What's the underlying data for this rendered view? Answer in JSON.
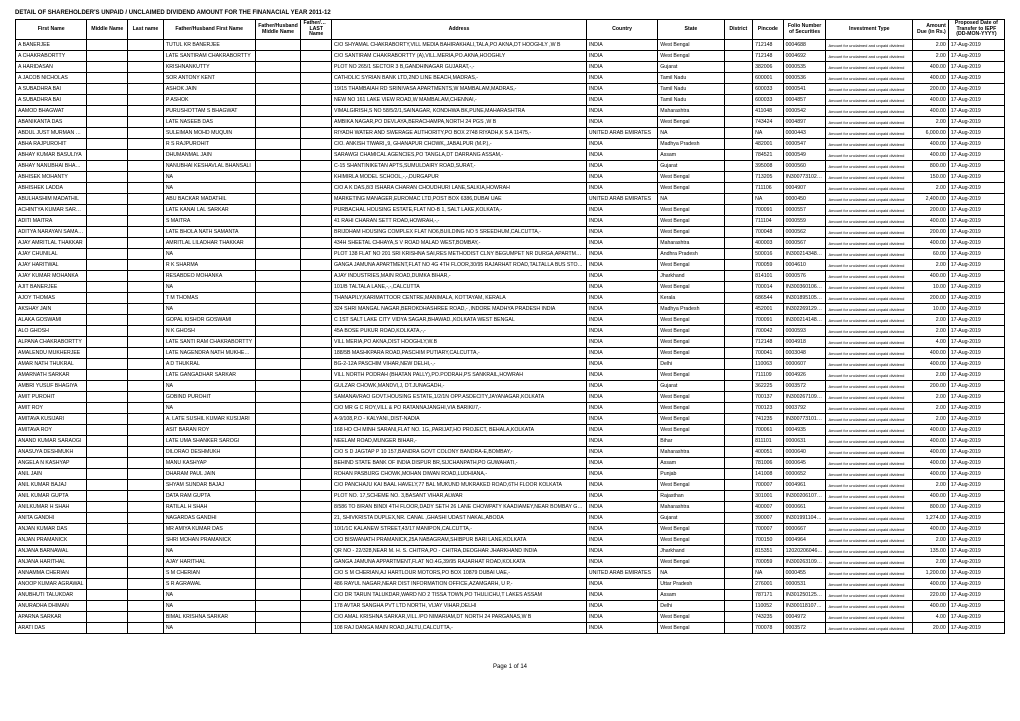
{
  "title": "DETAIL OF SHAREHOLDER'S UNPAID / UNCLAIMED DIVIDEND AMOUNT FOR THE FINANACIAL YEAR 2011-12",
  "footer": "Page 1 of 14",
  "headers": {
    "first_name": "First Name",
    "middle_name": "Middle Name",
    "last_name": "Last name",
    "father_name": "Father/Husband First Name",
    "father_middle": "Father/Husband Middle Name",
    "father_last": "Father/Husband LAST Name",
    "address": "Address",
    "country": "Country",
    "state": "State",
    "district": "District",
    "pincode": "Pincode",
    "folio": "Folio Number of Securities",
    "inv_type": "Investment Type",
    "amount": "Amount Due (in Rs.)",
    "date": "Proposed Date of Transfer to IEPF (DD-MON-YYYY)"
  },
  "inv_type_text": "Amount for unclaimed and unpaid dividend",
  "rows": [
    {
      "first": "A BANERJEE",
      "father": "TUTUL KR BANERJEE",
      "address": "C/O SHYAMAL CHAKRABORTY,VILL MEDIA BAHIRAKHALI,TALA,PO AKNA,DT HOOGHLY ,W B",
      "country": "INDIA",
      "state": "West Bengal",
      "pin": "712148",
      "folio": "0004688",
      "amt": "2.00",
      "date": "17-Aug-2019"
    },
    {
      "first": "A CHAKRABORTTY",
      "father": "LATE SANTIRAM CHAKRABORTTY",
      "address": "C/O SANTIRAM CHAKRABORTTY (A),VILL.MERIA,PO.AKNA,HOOGHLY",
      "country": "INDIA",
      "state": "West Bengal",
      "pin": "712148",
      "folio": "0004692",
      "amt": "2.00",
      "date": "17-Aug-2019"
    },
    {
      "first": "A HARIDASAN",
      "father": "KRISHNANKUTTY",
      "address": "PLOT NO 265/1 SECTOR 3 B,GANDHINAGAR GUJARAT,-,-",
      "country": "INDIA",
      "state": "Gujarat",
      "pin": "382006",
      "folio": "0000535",
      "amt": "400.00",
      "date": "17-Aug-2019"
    },
    {
      "first": "A JACOB NICHOLAS",
      "father": "SOR ANTONY KENT",
      "address": "CATHOLIC SYRIAN BANK LTD,2ND LINE BEACH,MADRAS,-",
      "country": "INDIA",
      "state": "Tamil Nadu",
      "pin": "600001",
      "folio": "0000536",
      "amt": "400.00",
      "date": "17-Aug-2019"
    },
    {
      "first": "A SUBADHRA BAI",
      "father": "ASHOK JAIN",
      "address": "19/15 THAMBAIAH RD SRINIVASA APARTMENTS,W MAMBALAM,MADRAS,-",
      "country": "INDIA",
      "state": "Tamil Nadu",
      "pin": "600033",
      "folio": "0000541",
      "amt": "200.00",
      "date": "17-Aug-2019"
    },
    {
      "first": "A SUBADHRA BAI",
      "father": "P ASHOK",
      "address": "NEW NO 161 LAKE VIEW ROAD,W MAMBALAM,CHENNAI,-",
      "country": "INDIA",
      "state": "Tamil Nadu",
      "pin": "600033",
      "folio": "0004857",
      "amt": "400.00",
      "date": "17-Aug-2019"
    },
    {
      "first": "AAMOD BHAGWAT",
      "father": "PURUSHOTTAM S BHAGWAT",
      "address": "VIMALGIRISH,S NO 58/5/2/1,SAINAGAR, KONDHWA BK,PUNE,MAHARASHTRA",
      "country": "INDIA",
      "state": "Maharashtra",
      "pin": "411048",
      "folio": "0000542",
      "amt": "400.00",
      "date": "17-Aug-2019"
    },
    {
      "first": "ABANIKANTA DAS",
      "father": "LATE NASEEB DAS",
      "address": "AMBIKA NAGAR,PO DEVLAYA,BERACHAMPA,NORTH 24 PGS ,W B",
      "country": "INDIA",
      "state": "West Bengal",
      "pin": "743424",
      "folio": "0004897",
      "amt": "2.00",
      "date": "17-Aug-2019"
    },
    {
      "first": "ABDUL JUST MURMAN MUQUIN",
      "father": "SULEIMAN MOHD MUQUIN",
      "address": "RIYADH WATER AND SWERAGE AUTHORITY,PO BOX 2748 RIYADH,K S A 11475,-",
      "country": "UNITED ARAB EMIRATES",
      "state": "NA",
      "pin": "NA",
      "folio": "0000443",
      "amt": "6,000.00",
      "date": "17-Aug-2019"
    },
    {
      "first": "ABHA RAJPUROHIT",
      "father": "R S RAJPUROHIT",
      "address": "C/O. ANKISH TIWARI,,9, GHANAPUR CHOWK,,JABALPUR (M.P.),-",
      "country": "INDIA",
      "state": "Madhya Pradesh",
      "pin": "482001",
      "folio": "0000547",
      "amt": "400.00",
      "date": "17-Aug-2019"
    },
    {
      "first": "ABHAY KUMAR BASULIYA",
      "father": "DHUMANMAL JAIN",
      "address": "SARAWGI CHAMICAL AGENCIES,PO TANGLA,DT DARRANG ASSAM,-",
      "country": "INDIA",
      "state": "Assam",
      "pin": "784521",
      "folio": "0000549",
      "amt": "400.00",
      "date": "17-Aug-2019"
    },
    {
      "first": "ABHAY NANUBHAI BHANSALI",
      "father": "NANUBHAI KESHAVLAL BHANSALI",
      "address": "C-15 SHANTINIKETAN APTS,SUMULDAIRY ROAD,SURAT,-",
      "country": "INDIA",
      "state": "Gujarat",
      "pin": "395008",
      "folio": "0000560",
      "amt": "800.00",
      "date": "17-Aug-2019"
    },
    {
      "first": "ABHISEK MOHANTY",
      "father": "NA",
      "address": "KHIMIRLA MODEL SCHOOL,-,-,DURGAPUR",
      "country": "INDIA",
      "state": "West Bengal",
      "pin": "713205",
      "folio": "IN30077310284543",
      "amt": "150.00",
      "date": "17-Aug-2019"
    },
    {
      "first": "ABHISHEK LADDA",
      "father": "NA",
      "address": "C/O A K DAS,8/3 ISHARA CHARAN CHOUDHURI LANE,SALKIA,HOWRAH",
      "country": "INDIA",
      "state": "West Bengal",
      "pin": "711106",
      "folio": "0004907",
      "amt": "2.00",
      "date": "17-Aug-2019"
    },
    {
      "first": "ABULHASHIM MADATHIL",
      "father": "ABU BACKAR MADATHIL",
      "address": "MARKETING MANAGER,EUROMAC LTD,POST BOX 6386,DUBAI UAE",
      "country": "UNITED ARAB EMIRATES",
      "state": "NA",
      "pin": "NA",
      "folio": "0000450",
      "amt": "2,400.00",
      "date": "17-Aug-2019"
    },
    {
      "first": "ACHINTYA KUMAR SARKAR",
      "father": "LATE KANAI LAL SARKAR",
      "address": "PURBACHAL HOUSING ESTATE,FLAT NO-B 1, SALT LAKE,KOLKATA,-",
      "country": "INDIA",
      "state": "West Bengal",
      "pin": "700091",
      "folio": "0000557",
      "amt": "200.00",
      "date": "17-Aug-2019"
    },
    {
      "first": "ADITI MAITRA",
      "father": "S MAITRA",
      "address": "41 RAHI CHARAN SETT ROAD,HOWRAH,-,-",
      "country": "INDIA",
      "state": "West Bengal",
      "pin": "711104",
      "folio": "0000559",
      "amt": "400.00",
      "date": "17-Aug-2019"
    },
    {
      "first": "ADITYA NARAYAN SAMANTA",
      "father": "LATE BHOLA NATH SAMANTA",
      "address": "BRIJDHAM HOUSING COMPLEX FLAT NO6,BUILDING NO 5 SREEDHUM,CALCUTTA,-",
      "country": "INDIA",
      "state": "West Bengal",
      "pin": "700048",
      "folio": "0000562",
      "amt": "200.00",
      "date": "17-Aug-2019"
    },
    {
      "first": "AJAY AMRITLAL THAKKAR",
      "father": "AMRITLAL LILADHAR THAKKAR",
      "address": "434H SHEETAL CHHAYA,S V ROAD MALAD WEST,BOMBAY,-",
      "country": "INDIA",
      "state": "Maharashtra",
      "pin": "400003",
      "folio": "0000567",
      "amt": "400.00",
      "date": "17-Aug-2019"
    },
    {
      "first": "AJAY CHUNILAL",
      "father": "NA",
      "address": "PLOT 138 FLAT NO 201 SRI KRISHNA SAI,RES METHODIST CLNY BEGUMPET NR DURGA,APARTMENTS,HYDERABAD ANDHRA PRADESH",
      "country": "INDIA",
      "state": "Andhra Pradesh",
      "pin": "500016",
      "folio": "IN30021434869519",
      "amt": "60.00",
      "date": "17-Aug-2019"
    },
    {
      "first": "AJAY HARITWAL",
      "father": "R K SHARMA",
      "address": "GANGA JAMUNA APARTMENT,FLAT NO 4G 4TH FLOOR,30/95 RAJARHAT ROAD,TALTALLA BUS STOP ,KOLKATA",
      "country": "INDIA",
      "state": "West Bengal",
      "pin": "700059",
      "folio": "0004610",
      "amt": "2.00",
      "date": "17-Aug-2019"
    },
    {
      "first": "AJAY KUMAR MOHANKA",
      "father": "RESABDEO MOHANKA",
      "address": "AJAY INDUSTRIES,MAIN ROAD,DUMKA BIHAR,-",
      "country": "INDIA",
      "state": "Jharkhand",
      "pin": "814101",
      "folio": "0000576",
      "amt": "400.00",
      "date": "17-Aug-2019"
    },
    {
      "first": "AJIT BANERJEE",
      "father": "NA",
      "address": "101/B TALTALA LANE,-,-,CALCUTTA",
      "country": "INDIA",
      "state": "West Bengal",
      "pin": "700014",
      "folio": "IN30036010617339",
      "amt": "10.00",
      "date": "17-Aug-2019"
    },
    {
      "first": "AJOY THOMAS",
      "father": "T M THOMAS",
      "address": "THANAPILY,KARIMATTOOR CENTRE,MANIMALA, KOTTAYAM, KERALA",
      "country": "INDIA",
      "state": "Kerala",
      "pin": "686544",
      "folio": "IN30189510518986",
      "amt": "200.00",
      "date": "17-Aug-2019"
    },
    {
      "first": "AKSHAY JAIN",
      "father": "NA",
      "address": "324 SHRI MANGAL NAGAR,BEROKDHASHREE ROAD,- ,INDORE MADHYA PRADESH INDIA",
      "country": "INDIA",
      "state": "Madhya Pradesh",
      "pin": "452001",
      "folio": "IN30226912908531",
      "amt": "10.00",
      "date": "17-Aug-2019"
    },
    {
      "first": "ALAKA GOSWAMI",
      "father": "GOPAL KISHOR GOSWAMI",
      "address": "C 1ST SALT LAKE CITY VIDYA SAGAR,BHAWAD.,KOLKATA WEST BENGAL",
      "country": "INDIA",
      "state": "West Bengal",
      "pin": "700091",
      "folio": "IN30021414808272",
      "amt": "2.00",
      "date": "17-Aug-2019"
    },
    {
      "first": "ALO GHOSH",
      "father": "N K GHOSH",
      "address": "45A BOSE PUKUR ROAD,KOLKATA,-,-",
      "country": "INDIA",
      "state": "West Bengal",
      "pin": "700042",
      "folio": "0000593",
      "amt": "2.00",
      "date": "17-Aug-2019"
    },
    {
      "first": "ALPANA CHAKRABORTTY",
      "father": "LATE SANTI RAM CHAKRABORTTY",
      "address": "VILL MERIA,PO AKNA,DIST HOOGHLY,W.B",
      "country": "INDIA",
      "state": "West Bengal",
      "pin": "712148",
      "folio": "0004918",
      "amt": "4.00",
      "date": "17-Aug-2019"
    },
    {
      "first": "AMALENDU MUKHERJEE",
      "father": "LATE NAGENDRA NATH MUKHERJEE",
      "address": "188/5B MASHKPARA ROAD,PASCHIM PUTIARY,CALCUTTA,-",
      "country": "INDIA",
      "state": "West Bengal",
      "pin": "700041",
      "folio": "0003048",
      "amt": "400.00",
      "date": "17-Aug-2019"
    },
    {
      "first": "AMAR NATH THUKRAL",
      "father": "A D THUKRAL",
      "address": "BG-2-12A PASCHIM VIHAR,NEW DELHI,-,-",
      "country": "INDIA",
      "state": "Delhi",
      "pin": "110063",
      "folio": "0000607",
      "amt": "400.00",
      "date": "17-Aug-2019"
    },
    {
      "first": "AMARNATH SARKAR",
      "father": "LATE GANGADHAR SARKAR",
      "address": "VILL NORTH PODRAH (BHATAN PALLY),PO.PODRAH,PS SANKRAIL,HOWRAH",
      "country": "INDIA",
      "state": "West Bengal",
      "pin": "711109",
      "folio": "0004926",
      "amt": "2.00",
      "date": "17-Aug-2019"
    },
    {
      "first": "AMBRI YUSUF BHAGIYA",
      "father": "NA",
      "address": "GULZAR CHOWK,MANDVI,J, DT.JUNAGADH,-",
      "country": "INDIA",
      "state": "Gujarat",
      "pin": "362225",
      "folio": "0003572",
      "amt": "200.00",
      "date": "17-Aug-2019"
    },
    {
      "first": "AMIT PUROHIT",
      "father": "GOBIND PUROHIT",
      "address": "SAMANAVRAO GOVT.HOUSING ESTATE,1/2/1N OPP.ASDECITY,JAYANAGAR,KOLKATA",
      "country": "INDIA",
      "state": "West Bengal",
      "pin": "700137",
      "folio": "IN30026710915348",
      "amt": "2.00",
      "date": "17-Aug-2019"
    },
    {
      "first": "AMIT ROY",
      "father": "NA",
      "address": "C/O MR G C ROY,VILL & PO RATANNAJANGHI,VIA BARIKI/7,-",
      "country": "INDIA",
      "state": "West Bengal",
      "pin": "700123",
      "folio": "0003792",
      "amt": "2.00",
      "date": "17-Aug-2019"
    },
    {
      "first": "AMITAVA KUSIJARI",
      "father": "A. LATE SUSHIL KUMAR KUSIJARI",
      "address": "A-9/108,P.O - KALYANI.,DIST-NADIA",
      "country": "INDIA",
      "state": "West Bengal",
      "pin": "741235",
      "folio": "IN30077310152509",
      "amt": "2.00",
      "date": "17-Aug-2019"
    },
    {
      "first": "AMITAVA ROY",
      "father": "ASIT BARAN ROY",
      "address": "168 HO CH MINH SARANI,FLAT NO. 1G,,PARIJAT,HO PROJECT, BEHALA,KOLKATA",
      "country": "INDIA",
      "state": "West Bengal",
      "pin": "700061",
      "folio": "0004935",
      "amt": "400.00",
      "date": "17-Aug-2019"
    },
    {
      "first": "ANAND KUMAR SARAOGI",
      "father": "LATE UMA SHANKER SAROGI",
      "address": "NEELAM ROAD,MUNGER BIHAR,-",
      "country": "INDIA",
      "state": "Bihar",
      "pin": "811101",
      "folio": "0000631",
      "amt": "400.00",
      "date": "17-Aug-2019"
    },
    {
      "first": "ANASUYA DESHMUKH",
      "father": "DILORAO DESHMUKH",
      "address": "C/O S D JAGTAP P 10 157,BANDRA GOVT COLONY BANDRA-E,BOMBAY,-",
      "country": "INDIA",
      "state": "Maharashtra",
      "pin": "400051",
      "folio": "0000640",
      "amt": "400.00",
      "date": "17-Aug-2019"
    },
    {
      "first": "ANGELA N KASHYAP",
      "father": "MANU KASHYAP",
      "address": "BEHIND STATE BANK OF INDIA DISPUR BR,SIJCHANPATH,PO GUWAHATI,-",
      "country": "INDIA",
      "state": "Assam",
      "pin": "781006",
      "folio": "0000645",
      "amt": "400.00",
      "date": "17-Aug-2019"
    },
    {
      "first": "ANIL JAIN",
      "father": "DHARAM PAUL JAIN",
      "address": "ROHAN PASBURG CHOWK,MOHAN DIWAN ROAD,LUDHIANA,-",
      "country": "INDIA",
      "state": "Punjab",
      "pin": "141008",
      "folio": "0000652",
      "amt": "400.00",
      "date": "17-Aug-2019"
    },
    {
      "first": "ANIL KUMAR BAJAJ",
      "father": "SHYAM SUNDAR BAJAJ",
      "address": "C/O PANCHAJU KAI BAAL HAVELY,77 BAL MUKUND MUKRAKED ROAD,6TH FLOOR KOLKATA",
      "country": "INDIA",
      "state": "West Bengal",
      "pin": "700007",
      "folio": "0004961",
      "amt": "2.00",
      "date": "17-Aug-2019"
    },
    {
      "first": "ANIL KUMAR GUPTA",
      "father": "DATA RAM GUPTA",
      "address": "PLOT NO. 17,SCHEME NO. 3,BASANT VIHAR,ALWAR",
      "country": "INDIA",
      "state": "Rajasthan",
      "pin": "301001",
      "folio": "IN30020610721393",
      "amt": "400.00",
      "date": "17-Aug-2019"
    },
    {
      "first": "ANILKUMAR H SHAH",
      "father": "RATILAL H SHAH",
      "address": "8/586 TO 8/RAN BINDI 4TH FLOOR,DADY SETH 26 LANE CHOWPATY KAADIAMEY,NEAR BOMBAY GARAGE,-",
      "country": "INDIA",
      "state": "Maharashtra",
      "pin": "400007",
      "folio": "0000661",
      "amt": "800.00",
      "date": "17-Aug-2019"
    },
    {
      "first": "ANITA GANDHI",
      "father": "NAGARDAS GANDHI",
      "address": "21, SHIVKRISTA DUPLEX,NR. CANAL ,GHASHI UDAST NAKAL,ABODA",
      "country": "INDIA",
      "state": "Gujarat",
      "pin": "390007",
      "folio": "IN30199110484652",
      "amt": "1,274.00",
      "date": "17-Aug-2019"
    },
    {
      "first": "ANJAN KUMAR DAS",
      "father": "MR AMIYA KUMAR DAS",
      "address": "10/1/1C KALANEW STREET,43/17 MANIPON,CALCUTTA,-",
      "country": "INDIA",
      "state": "West Bengal",
      "pin": "700007",
      "folio": "0000667",
      "amt": "400.00",
      "date": "17-Aug-2019"
    },
    {
      "first": "ANJAN PRAMANICK",
      "father": "SHRI MOHAN PRAMANICK",
      "address": "C/O BISWANATH PRAMANICK,25A NABAGRAM,SHIBPUR BARI LANE,KOLKATA",
      "country": "INDIA",
      "state": "West Bengal",
      "pin": "700150",
      "folio": "0004964",
      "amt": "2.00",
      "date": "17-Aug-2019"
    },
    {
      "first": "ANJANA BARNAWAL",
      "father": "NA",
      "address": "QR NO - 22/328,NEAR M. H. S. CHITRA,PO - CHITRA,DEOGHAR JHARKHAND INDIA",
      "country": "INDIA",
      "state": "Jharkhand",
      "pin": "815351",
      "folio": "12020206046378023",
      "amt": "135.00",
      "date": "17-Aug-2019"
    },
    {
      "first": "ANJANA HARITHAL",
      "father": "AJAY HARITHAL",
      "address": "GANGA JAMUNA APPARTMENT,FLAT NO.4G,39/95 RAJARHAT ROAD,KOLKATA",
      "country": "INDIA",
      "state": "West Bengal",
      "pin": "700059",
      "folio": "IN30026310907602",
      "amt": "2.00",
      "date": "17-Aug-2019"
    },
    {
      "first": "ANNAMMA CHERIAN",
      "father": "S M CHERIAN",
      "address": "C/O S M CHERIAN,AJ HARTLOUR MOTORS,PO BOX 10879 DUBAI UAE,-",
      "country": "UNITED ARAB EMIRATES",
      "state": "NA",
      "pin": "NA",
      "folio": "0000455",
      "amt": "1,200.00",
      "date": "17-Aug-2019"
    },
    {
      "first": "ANOOP KUMAR AGRAWAL",
      "father": "S R AGRAWAL",
      "address": "486 RAYUL NAGAR,NEAR DIST INFORMATION OFFICE,AZAMGARH, U P,-",
      "country": "INDIA",
      "state": "Uttar Pradesh",
      "pin": "276001",
      "folio": "0000531",
      "amt": "400.00",
      "date": "17-Aug-2019"
    },
    {
      "first": "ANUBHUTI TALUKDAR",
      "father": "NA",
      "address": "C/O DR TARUN TALUKDAR,WARD NO 2 TISSA TOWN,PO THULICHU,T LAKES ASSAM",
      "country": "INDIA",
      "state": "Assam",
      "pin": "787171",
      "folio": "IN30125012590508",
      "amt": "220.00",
      "date": "17-Aug-2019"
    },
    {
      "first": "ANURADHA DHIMAN",
      "father": "NA",
      "address": "178 AVTAR SANGHA PVT LTD NORTH, VIJAY VIHAR,DELHI",
      "country": "INDIA",
      "state": "Delhi",
      "pin": "110052",
      "folio": "IN30011810739399",
      "amt": "400.00",
      "date": "17-Aug-2019"
    },
    {
      "first": "APARNA SARKAR",
      "father": "BIMAL KRISHNA SARKAR",
      "address": "C/O AMAL KRISHNA SARKAR,VILL /PO NIMARIAM,DT NORTH 24 PARGANAS,W B",
      "country": "INDIA",
      "state": "West Bengal",
      "pin": "743235",
      "folio": "0004972",
      "amt": "4.00",
      "date": "17-Aug-2019"
    },
    {
      "first": "ARATI DAS",
      "father": "NA",
      "address": "108 RAJ DANGA MAIN ROAD,JALTU,CALCUTTA,-",
      "country": "INDIA",
      "state": "West Bengal",
      "pin": "700078",
      "folio": "0003572",
      "amt": "20.00",
      "date": "17-Aug-2019"
    }
  ]
}
